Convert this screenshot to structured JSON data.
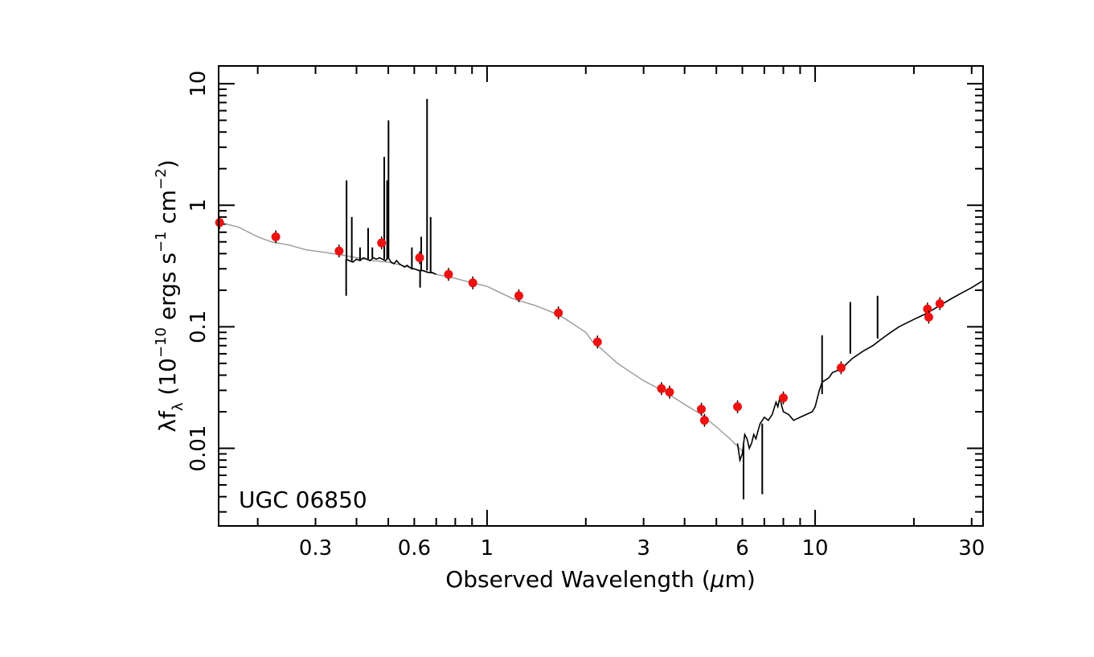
{
  "chart_data": {
    "type": "scatter",
    "xlabel_prefix": "Observed Wavelength (",
    "xlabel_mu": "μ",
    "xlabel_suffix": "m)",
    "ylabel_lambda": "λf",
    "ylabel_sub": "λ",
    "ylabel_open": " (10",
    "ylabel_exp1": "−10",
    "ylabel_units1": " ergs s",
    "ylabel_exp2": "−1",
    "ylabel_units2": " cm",
    "ylabel_exp3": "−2",
    "ylabel_close": ")",
    "annotation": "UGC 06850",
    "x_scale": "log",
    "y_scale": "log",
    "xlim": [
      0.152,
      32.5
    ],
    "ylim": [
      0.0023,
      14
    ],
    "x_ticks": [
      {
        "value": 0.3,
        "label": "0.3"
      },
      {
        "value": 0.6,
        "label": "0.6"
      },
      {
        "value": 1,
        "label": "1"
      },
      {
        "value": 3,
        "label": "3"
      },
      {
        "value": 6,
        "label": "6"
      },
      {
        "value": 10,
        "label": "10"
      },
      {
        "value": 30,
        "label": "30"
      }
    ],
    "y_ticks": [
      {
        "value": 0.01,
        "label": "0.01"
      },
      {
        "value": 0.1,
        "label": "0.1"
      },
      {
        "value": 1,
        "label": "1"
      },
      {
        "value": 10,
        "label": "10"
      }
    ],
    "model_sed": {
      "color": "#999999",
      "x": [
        0.152,
        0.16,
        0.175,
        0.2,
        0.22,
        0.25,
        0.28,
        0.32,
        0.36,
        0.4,
        0.45,
        0.5,
        0.55,
        0.6,
        0.7,
        0.8,
        0.9,
        1.0,
        1.2,
        1.4,
        1.6,
        1.7,
        2.0,
        2.1,
        2.2,
        2.5,
        3.0,
        3.5,
        4.0,
        4.5,
        5.0,
        5.5,
        6.0
      ],
      "y": [
        0.75,
        0.7,
        0.66,
        0.55,
        0.5,
        0.47,
        0.43,
        0.41,
        0.39,
        0.37,
        0.35,
        0.34,
        0.32,
        0.3,
        0.27,
        0.25,
        0.23,
        0.215,
        0.17,
        0.15,
        0.13,
        0.12,
        0.09,
        0.075,
        0.068,
        0.05,
        0.036,
        0.029,
        0.023,
        0.019,
        0.015,
        0.012,
        0.0095
      ]
    },
    "optical_spectrum": {
      "color": "#000000",
      "x": [
        0.372,
        0.38,
        0.39,
        0.4,
        0.41,
        0.42,
        0.43,
        0.44,
        0.45,
        0.46,
        0.47,
        0.48,
        0.49,
        0.495,
        0.5,
        0.51,
        0.52,
        0.53,
        0.54,
        0.55,
        0.56,
        0.57,
        0.58,
        0.59,
        0.6,
        0.62,
        0.64,
        0.66,
        0.68,
        0.7
      ],
      "y": [
        0.36,
        0.35,
        0.34,
        0.36,
        0.35,
        0.37,
        0.36,
        0.35,
        0.37,
        0.36,
        0.37,
        0.36,
        0.35,
        0.36,
        0.37,
        0.34,
        0.33,
        0.35,
        0.33,
        0.32,
        0.31,
        0.32,
        0.31,
        0.3,
        0.3,
        0.29,
        0.29,
        0.28,
        0.28,
        0.27
      ]
    },
    "emission_lines": [
      {
        "x": 0.373,
        "peak": 1.6,
        "base": 0.35
      },
      {
        "x": 0.387,
        "peak": 0.8,
        "base": 0.34
      },
      {
        "x": 0.41,
        "peak": 0.45,
        "base": 0.35
      },
      {
        "x": 0.434,
        "peak": 0.65,
        "base": 0.36
      },
      {
        "x": 0.447,
        "peak": 0.45,
        "base": 0.37
      },
      {
        "x": 0.486,
        "peak": 2.5,
        "base": 0.36
      },
      {
        "x": 0.496,
        "peak": 1.6,
        "base": 0.36
      },
      {
        "x": 0.5007,
        "peak": 5.0,
        "base": 0.37
      },
      {
        "x": 0.59,
        "peak": 0.45,
        "base": 0.3
      },
      {
        "x": 0.63,
        "peak": 0.55,
        "base": 0.29
      },
      {
        "x": 0.6563,
        "peak": 7.5,
        "base": 0.29
      },
      {
        "x": 0.673,
        "peak": 0.8,
        "base": 0.28
      }
    ],
    "absorption_lines": [
      {
        "x": 0.372,
        "trough": 0.18,
        "base": 0.36
      },
      {
        "x": 0.625,
        "trough": 0.21,
        "base": 0.29
      }
    ],
    "ir_spectrum": {
      "color": "#000000",
      "x": [
        5.8,
        5.9,
        6.0,
        6.1,
        6.2,
        6.3,
        6.4,
        6.5,
        6.6,
        6.7,
        6.8,
        7.0,
        7.2,
        7.4,
        7.6,
        7.7,
        7.8,
        8.0,
        8.3,
        8.6,
        9.0,
        9.4,
        9.8,
        10.0,
        10.3,
        10.5,
        11.0,
        11.3,
        12.0,
        13.0,
        14.0,
        15.0,
        16.0,
        17.0,
        18.0,
        20.0,
        22.0,
        24.0,
        26.0,
        28.0,
        30.0,
        32.5
      ],
      "y": [
        0.011,
        0.008,
        0.009,
        0.013,
        0.012,
        0.01,
        0.011,
        0.013,
        0.012,
        0.014,
        0.016,
        0.018,
        0.017,
        0.019,
        0.024,
        0.022,
        0.026,
        0.02,
        0.019,
        0.017,
        0.018,
        0.019,
        0.02,
        0.022,
        0.03,
        0.035,
        0.038,
        0.042,
        0.045,
        0.055,
        0.063,
        0.07,
        0.08,
        0.09,
        0.1,
        0.115,
        0.13,
        0.15,
        0.17,
        0.19,
        0.21,
        0.24
      ]
    },
    "ir_features": [
      {
        "x": 6.05,
        "trough": 0.0038,
        "base": 0.011
      },
      {
        "x": 6.9,
        "trough": 0.0042,
        "base": 0.016
      },
      {
        "x": 10.5,
        "peak": 0.085,
        "base": 0.028
      },
      {
        "x": 12.8,
        "peak": 0.16,
        "base": 0.06
      },
      {
        "x": 15.5,
        "peak": 0.18,
        "base": 0.08
      }
    ],
    "photometry": {
      "color": "#ee1111",
      "x": [
        0.153,
        0.227,
        0.354,
        0.477,
        0.623,
        0.763,
        0.905,
        1.25,
        1.65,
        2.17,
        3.4,
        3.6,
        4.5,
        4.6,
        5.8,
        8.0,
        12.0,
        22.0,
        22.2,
        24.0
      ],
      "y": [
        0.72,
        0.55,
        0.42,
        0.49,
        0.37,
        0.27,
        0.23,
        0.18,
        0.13,
        0.075,
        0.031,
        0.029,
        0.021,
        0.017,
        0.022,
        0.026,
        0.046,
        0.14,
        0.12,
        0.155
      ]
    }
  }
}
